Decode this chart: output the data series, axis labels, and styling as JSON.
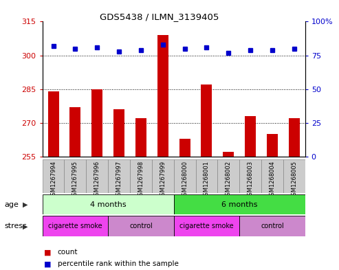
{
  "title": "GDS5438 / ILMN_3139405",
  "samples": [
    "GSM1267994",
    "GSM1267995",
    "GSM1267996",
    "GSM1267997",
    "GSM1267998",
    "GSM1267999",
    "GSM1268000",
    "GSM1268001",
    "GSM1268002",
    "GSM1268003",
    "GSM1268004",
    "GSM1268005"
  ],
  "count_values": [
    284,
    277,
    285,
    276,
    272,
    309,
    263,
    287,
    257,
    273,
    265,
    272
  ],
  "percentile_values": [
    82,
    80,
    81,
    78,
    79,
    83,
    80,
    81,
    77,
    79,
    79,
    80
  ],
  "ylim_left": [
    255,
    315
  ],
  "ylim_right": [
    0,
    100
  ],
  "yticks_left": [
    255,
    270,
    285,
    300,
    315
  ],
  "yticks_right": [
    0,
    25,
    50,
    75,
    100
  ],
  "bar_color": "#cc0000",
  "dot_color": "#0000cc",
  "bar_width": 0.5,
  "age_groups": [
    {
      "label": "4 months",
      "start": 0,
      "end": 6,
      "color": "#ccffcc"
    },
    {
      "label": "6 months",
      "start": 6,
      "end": 12,
      "color": "#44dd44"
    }
  ],
  "stress_groups": [
    {
      "label": "cigarette smoke",
      "start": 0,
      "end": 3,
      "color": "#ee44ee"
    },
    {
      "label": "control",
      "start": 3,
      "end": 6,
      "color": "#cc88cc"
    },
    {
      "label": "cigarette smoke",
      "start": 6,
      "end": 9,
      "color": "#ee44ee"
    },
    {
      "label": "control",
      "start": 9,
      "end": 12,
      "color": "#cc88cc"
    }
  ],
  "age_label": "age",
  "stress_label": "stress",
  "legend_count_label": "count",
  "legend_pct_label": "percentile rank within the sample",
  "tick_color_left": "#cc0000",
  "tick_color_right": "#0000cc",
  "background_color": "#ffffff",
  "plot_bg_color": "#ffffff",
  "grid_color": "#000000",
  "tick_label_bg": "#cccccc",
  "border_color": "#000000"
}
